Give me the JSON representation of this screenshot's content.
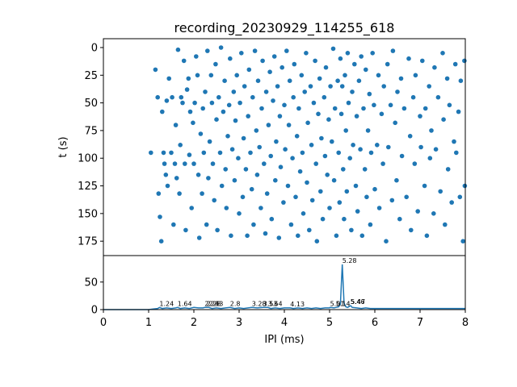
{
  "title": "recording_20230929_114255_618",
  "colors": {
    "series": "#1f77b4",
    "axis": "#000000",
    "background": "#ffffff"
  },
  "chart_data": [
    {
      "type": "scatter",
      "title": "recording_20230929_114255_618",
      "ylabel": "t (s)",
      "xlim": [
        0,
        8
      ],
      "ylim": [
        188,
        -8
      ],
      "y_inverted": true,
      "yticks": [
        0,
        25,
        50,
        75,
        100,
        125,
        150,
        175
      ],
      "grid": false,
      "points": [
        [
          1.05,
          95
        ],
        [
          1.15,
          20
        ],
        [
          1.2,
          45
        ],
        [
          1.22,
          132
        ],
        [
          1.25,
          153
        ],
        [
          1.28,
          175
        ],
        [
          1.3,
          58
        ],
        [
          1.33,
          95
        ],
        [
          1.35,
          105
        ],
        [
          1.38,
          115
        ],
        [
          1.4,
          48
        ],
        [
          1.42,
          125
        ],
        [
          1.45,
          28
        ],
        [
          1.5,
          95
        ],
        [
          1.52,
          45
        ],
        [
          1.55,
          160
        ],
        [
          1.58,
          105
        ],
        [
          1.6,
          70
        ],
        [
          1.62,
          118
        ],
        [
          1.65,
          2
        ],
        [
          1.68,
          132
        ],
        [
          1.7,
          88
        ],
        [
          1.72,
          45
        ],
        [
          1.75,
          50
        ],
        [
          1.78,
          12
        ],
        [
          1.8,
          105
        ],
        [
          1.82,
          165
        ],
        [
          1.85,
          38
        ],
        [
          1.88,
          28
        ],
        [
          1.9,
          97
        ],
        [
          1.92,
          58
        ],
        [
          1.95,
          145
        ],
        [
          1.98,
          68
        ],
        [
          2.0,
          105
        ],
        [
          2.02,
          50
        ],
        [
          2.05,
          8
        ],
        [
          2.08,
          25
        ],
        [
          2.1,
          115
        ],
        [
          2.12,
          172
        ],
        [
          2.15,
          78
        ],
        [
          2.18,
          132
        ],
        [
          2.2,
          55
        ],
        [
          2.22,
          95
        ],
        [
          2.25,
          40
        ],
        [
          2.28,
          160
        ],
        [
          2.3,
          3
        ],
        [
          2.32,
          118
        ],
        [
          2.35,
          85
        ],
        [
          2.38,
          25
        ],
        [
          2.4,
          50
        ],
        [
          2.42,
          105
        ],
        [
          2.45,
          138
        ],
        [
          2.48,
          15
        ],
        [
          2.5,
          65
        ],
        [
          2.52,
          165
        ],
        [
          2.55,
          45
        ],
        [
          2.58,
          95
        ],
        [
          2.6,
          0
        ],
        [
          2.62,
          125
        ],
        [
          2.65,
          58
        ],
        [
          2.68,
          30
        ],
        [
          2.7,
          110
        ],
        [
          2.72,
          145
        ],
        [
          2.75,
          80
        ],
        [
          2.78,
          52
        ],
        [
          2.8,
          10
        ],
        [
          2.82,
          170
        ],
        [
          2.85,
          92
        ],
        [
          2.88,
          40
        ],
        [
          2.9,
          120
        ],
        [
          2.92,
          66
        ],
        [
          2.95,
          25
        ],
        [
          2.98,
          100
        ],
        [
          3.0,
          150
        ],
        [
          3.02,
          50
        ],
        [
          3.05,
          5
        ],
        [
          3.08,
          135
        ],
        [
          3.1,
          82
        ],
        [
          3.12,
          35
        ],
        [
          3.15,
          110
        ],
        [
          3.18,
          170
        ],
        [
          3.2,
          62
        ],
        [
          3.22,
          20
        ],
        [
          3.25,
          95
        ],
        [
          3.28,
          128
        ],
        [
          3.3,
          45
        ],
        [
          3.32,
          160
        ],
        [
          3.35,
          3
        ],
        [
          3.38,
          75
        ],
        [
          3.4,
          115
        ],
        [
          3.42,
          30
        ],
        [
          3.45,
          90
        ],
        [
          3.48,
          145
        ],
        [
          3.5,
          55
        ],
        [
          3.52,
          12
        ],
        [
          3.55,
          105
        ],
        [
          3.58,
          168
        ],
        [
          3.6,
          40
        ],
        [
          3.62,
          132
        ],
        [
          3.65,
          70
        ],
        [
          3.68,
          22
        ],
        [
          3.7,
          98
        ],
        [
          3.72,
          155
        ],
        [
          3.75,
          48
        ],
        [
          3.78,
          8
        ],
        [
          3.8,
          120
        ],
        [
          3.82,
          85
        ],
        [
          3.85,
          35
        ],
        [
          3.88,
          172
        ],
        [
          3.9,
          62
        ],
        [
          3.92,
          108
        ],
        [
          3.95,
          18
        ],
        [
          3.98,
          140
        ],
        [
          4.0,
          52
        ],
        [
          4.02,
          92
        ],
        [
          4.05,
          3
        ],
        [
          4.08,
          125
        ],
        [
          4.1,
          70
        ],
        [
          4.12,
          30
        ],
        [
          4.15,
          160
        ],
        [
          4.18,
          100
        ],
        [
          4.2,
          45
        ],
        [
          4.22,
          15
        ],
        [
          4.25,
          135
        ],
        [
          4.28,
          80
        ],
        [
          4.3,
          170
        ],
        [
          4.32,
          55
        ],
        [
          4.35,
          112
        ],
        [
          4.38,
          25
        ],
        [
          4.4,
          95
        ],
        [
          4.42,
          150
        ],
        [
          4.45,
          40
        ],
        [
          4.48,
          5
        ],
        [
          4.5,
          122
        ],
        [
          4.52,
          68
        ],
        [
          4.55,
          165
        ],
        [
          4.58,
          35
        ],
        [
          4.6,
          88
        ],
        [
          4.62,
          138
        ],
        [
          4.65,
          50
        ],
        [
          4.68,
          12
        ],
        [
          4.7,
          105
        ],
        [
          4.72,
          175
        ],
        [
          4.75,
          60
        ],
        [
          4.78,
          28
        ],
        [
          4.8,
          130
        ],
        [
          4.82,
          82
        ],
        [
          4.85,
          155
        ],
        [
          4.88,
          45
        ],
        [
          4.9,
          98
        ],
        [
          4.92,
          18
        ],
        [
          4.95,
          115
        ],
        [
          4.98,
          65
        ],
        [
          5.0,
          145
        ],
        [
          5.02,
          35
        ],
        [
          5.05,
          85
        ],
        [
          5.08,
          1
        ],
        [
          5.1,
          120
        ],
        [
          5.12,
          55
        ],
        [
          5.15,
          170
        ],
        [
          5.18,
          30
        ],
        [
          5.2,
          95
        ],
        [
          5.22,
          140
        ],
        [
          5.24,
          10
        ],
        [
          5.26,
          60
        ],
        [
          5.28,
          35
        ],
        [
          5.3,
          110
        ],
        [
          5.32,
          155
        ],
        [
          5.34,
          25
        ],
        [
          5.36,
          75
        ],
        [
          5.38,
          130
        ],
        [
          5.4,
          5
        ],
        [
          5.42,
          50
        ],
        [
          5.45,
          100
        ],
        [
          5.48,
          165
        ],
        [
          5.5,
          40
        ],
        [
          5.52,
          88
        ],
        [
          5.55,
          15
        ],
        [
          5.58,
          125
        ],
        [
          5.6,
          62
        ],
        [
          5.62,
          148
        ],
        [
          5.65,
          30
        ],
        [
          5.68,
          92
        ],
        [
          5.7,
          8
        ],
        [
          5.72,
          170
        ],
        [
          5.75,
          55
        ],
        [
          5.78,
          110
        ],
        [
          5.8,
          20
        ],
        [
          5.82,
          135
        ],
        [
          5.85,
          75
        ],
        [
          5.88,
          42
        ],
        [
          5.9,
          160
        ],
        [
          5.92,
          95
        ],
        [
          5.95,
          5
        ],
        [
          5.98,
          52
        ],
        [
          6.0,
          128
        ],
        [
          6.05,
          88
        ],
        [
          6.08,
          25
        ],
        [
          6.1,
          145
        ],
        [
          6.15,
          60
        ],
        [
          6.18,
          105
        ],
        [
          6.2,
          35
        ],
        [
          6.25,
          175
        ],
        [
          6.28,
          15
        ],
        [
          6.3,
          90
        ],
        [
          6.35,
          52
        ],
        [
          6.38,
          138
        ],
        [
          6.4,
          3
        ],
        [
          6.45,
          68
        ],
        [
          6.48,
          120
        ],
        [
          6.5,
          40
        ],
        [
          6.55,
          155
        ],
        [
          6.58,
          28
        ],
        [
          6.6,
          98
        ],
        [
          6.65,
          55
        ],
        [
          6.7,
          135
        ],
        [
          6.75,
          10
        ],
        [
          6.78,
          80
        ],
        [
          6.8,
          165
        ],
        [
          6.85,
          45
        ],
        [
          6.88,
          105
        ],
        [
          6.9,
          25
        ],
        [
          6.95,
          148
        ],
        [
          7.0,
          62
        ],
        [
          7.02,
          90
        ],
        [
          7.05,
          12
        ],
        [
          7.1,
          125
        ],
        [
          7.12,
          55
        ],
        [
          7.15,
          170
        ],
        [
          7.2,
          35
        ],
        [
          7.22,
          100
        ],
        [
          7.25,
          75
        ],
        [
          7.3,
          150
        ],
        [
          7.32,
          18
        ],
        [
          7.35,
          92
        ],
        [
          7.4,
          45
        ],
        [
          7.45,
          130
        ],
        [
          7.5,
          5
        ],
        [
          7.52,
          65
        ],
        [
          7.55,
          160
        ],
        [
          7.6,
          28
        ],
        [
          7.62,
          110
        ],
        [
          7.65,
          52
        ],
        [
          7.7,
          140
        ],
        [
          7.75,
          85
        ],
        [
          7.78,
          15
        ],
        [
          7.8,
          95
        ],
        [
          7.85,
          58
        ],
        [
          7.88,
          135
        ],
        [
          7.9,
          30
        ],
        [
          7.95,
          175
        ],
        [
          7.98,
          12
        ],
        [
          7.99,
          125
        ]
      ]
    },
    {
      "type": "line",
      "xlabel": "IPI (ms)",
      "xlim": [
        0,
        8
      ],
      "ylim": [
        0,
        98
      ],
      "xticks": [
        0,
        1,
        2,
        3,
        4,
        5,
        6,
        7,
        8
      ],
      "yticks": [
        0,
        50
      ],
      "x": [
        0.0,
        0.8,
        1.0,
        1.1,
        1.2,
        1.24,
        1.3,
        1.4,
        1.5,
        1.6,
        1.64,
        1.7,
        1.8,
        1.9,
        2.0,
        2.1,
        2.2,
        2.24,
        2.28,
        2.33,
        2.4,
        2.5,
        2.6,
        2.7,
        2.8,
        2.9,
        3.0,
        3.1,
        3.2,
        3.28,
        3.4,
        3.53,
        3.64,
        3.7,
        3.8,
        3.9,
        4.0,
        4.13,
        4.2,
        4.3,
        4.4,
        4.5,
        4.6,
        4.7,
        4.8,
        4.9,
        5.0,
        5.01,
        5.1,
        5.14,
        5.2,
        5.24,
        5.28,
        5.32,
        5.36,
        5.4,
        5.46,
        5.47,
        5.5,
        5.6,
        5.7,
        5.8,
        5.9,
        6.0,
        6.2,
        6.4,
        6.6,
        6.8,
        7.0,
        7.2,
        7.4,
        7.6,
        7.8,
        8.0
      ],
      "y": [
        0,
        0,
        0,
        1,
        2,
        4,
        2,
        3,
        2,
        3,
        4,
        2,
        3,
        2,
        4,
        3,
        3,
        4,
        4,
        4,
        2,
        3,
        2,
        3,
        4,
        2,
        3,
        2,
        3,
        4,
        3,
        4,
        4,
        2,
        3,
        2,
        3,
        3,
        2,
        3,
        2,
        3,
        2,
        3,
        2,
        3,
        3,
        4,
        3,
        4,
        5,
        10,
        82,
        12,
        5,
        4,
        7,
        7,
        4,
        3,
        2,
        3,
        2,
        2,
        2,
        2,
        2,
        2,
        2,
        2,
        2,
        2,
        2,
        2
      ],
      "annotations": [
        {
          "x": 1.24,
          "y": 4,
          "label": "1.24"
        },
        {
          "x": 1.64,
          "y": 4,
          "label": "1.64"
        },
        {
          "x": 2.24,
          "y": 4,
          "label": "2.24"
        },
        {
          "x": 2.28,
          "y": 4,
          "label": "2.28"
        },
        {
          "x": 2.33,
          "y": 4,
          "label": "2.33"
        },
        {
          "x": 2.8,
          "y": 4,
          "label": "2.8"
        },
        {
          "x": 3.28,
          "y": 4,
          "label": "3.28"
        },
        {
          "x": 3.53,
          "y": 4,
          "label": "3.53"
        },
        {
          "x": 3.64,
          "y": 4,
          "label": "3.64"
        },
        {
          "x": 4.13,
          "y": 3,
          "label": "4.13"
        },
        {
          "x": 5.01,
          "y": 4,
          "label": "5.01"
        },
        {
          "x": 5.14,
          "y": 4,
          "label": "5.14"
        },
        {
          "x": 5.28,
          "y": 82,
          "label": "5.28"
        },
        {
          "x": 5.46,
          "y": 7,
          "label": "5.46"
        },
        {
          "x": 5.47,
          "y": 7,
          "label": "5.47"
        }
      ]
    }
  ]
}
